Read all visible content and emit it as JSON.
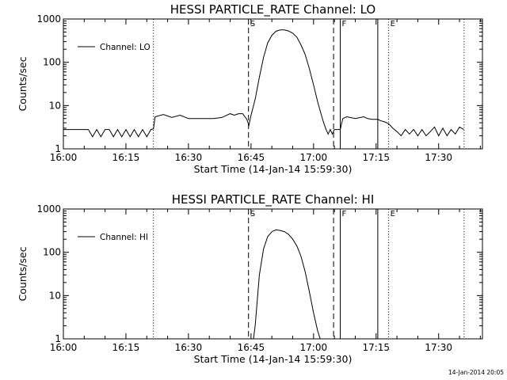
{
  "chart_data": [
    {
      "type": "line",
      "title": "HESSI PARTICLE_RATE Channel: LO",
      "xlabel": "Start Time (14-Jan-14 15:59:30)",
      "ylabel": "Counts/sec",
      "yscale": "log",
      "ylim": [
        1,
        1000
      ],
      "xlim_minutes": [
        0,
        100.5
      ],
      "xticks": [
        "16:00",
        "16:15",
        "16:30",
        "16:45",
        "17:00",
        "17:15",
        "17:30"
      ],
      "yticks": [
        "1",
        "10",
        "100",
        "1000"
      ],
      "legend": "Channel: LO",
      "legend_position": "top-left",
      "markers": [
        {
          "label": "",
          "minute": 21.6,
          "style": "dotted"
        },
        {
          "label": "S",
          "minute": 44.4,
          "style": "dashed"
        },
        {
          "label": "",
          "minute": 64.8,
          "style": "dashed"
        },
        {
          "label": "F",
          "minute": 66.4,
          "style": "solid"
        },
        {
          "label": "",
          "minute": 75.4,
          "style": "solid"
        },
        {
          "label": "E",
          "minute": 78.0,
          "style": "dotted"
        },
        {
          "label": "",
          "minute": 96.1,
          "style": "dotted"
        }
      ],
      "series": [
        {
          "name": "Channel: LO",
          "x": [
            0,
            6,
            7,
            8,
            9,
            10,
            11,
            12,
            13,
            14,
            15,
            16,
            17,
            18,
            19,
            20,
            21,
            21.6,
            22,
            24,
            26,
            28,
            30,
            32,
            34,
            36,
            38,
            40,
            41,
            42,
            43,
            44,
            44.5,
            45,
            46,
            47,
            48,
            49,
            50,
            51,
            52,
            53,
            54,
            55,
            56,
            57,
            58,
            59,
            60,
            61,
            62,
            62.5,
            63,
            63.5,
            64,
            64.5,
            65,
            66.4,
            67,
            68,
            70,
            72,
            73,
            74,
            75.4,
            76,
            77,
            78,
            79,
            80,
            81,
            82,
            83,
            84,
            85,
            86,
            87,
            88,
            89,
            90,
            91,
            92,
            93,
            94,
            95,
            95.5,
            96
          ],
          "y": [
            2.8,
            2.8,
            1.9,
            2.8,
            1.9,
            2.8,
            2.8,
            1.9,
            2.8,
            1.9,
            2.8,
            1.9,
            2.8,
            1.9,
            2.8,
            1.9,
            2.8,
            2.9,
            5.5,
            6.2,
            5.3,
            6.0,
            5.0,
            5.0,
            5.0,
            5.0,
            5.3,
            6.5,
            6.0,
            6.5,
            6.5,
            4.8,
            3.5,
            6.0,
            14,
            45,
            130,
            280,
            420,
            520,
            560,
            560,
            530,
            470,
            380,
            250,
            150,
            70,
            30,
            12,
            5.5,
            3.8,
            2.8,
            2.2,
            2.8,
            2.2,
            2.8,
            2.8,
            5.0,
            5.5,
            5.0,
            5.5,
            5.0,
            4.8,
            4.8,
            4.5,
            4.2,
            3.8,
            3.0,
            2.5,
            2.0,
            2.8,
            2.2,
            2.8,
            2.0,
            2.8,
            2.0,
            2.5,
            3.2,
            2.0,
            3.0,
            2.0,
            2.8,
            2.2,
            3.2,
            3.0,
            2.8
          ]
        }
      ]
    },
    {
      "type": "line",
      "title": "HESSI PARTICLE_RATE Channel: HI",
      "xlabel": "Start Time (14-Jan-14 15:59:30)",
      "ylabel": "Counts/sec",
      "yscale": "log",
      "ylim": [
        1,
        1000
      ],
      "xlim_minutes": [
        0,
        100.5
      ],
      "xticks": [
        "16:00",
        "16:15",
        "16:30",
        "16:45",
        "17:00",
        "17:15",
        "17:30"
      ],
      "yticks": [
        "1",
        "10",
        "100",
        "1000"
      ],
      "legend": "Channel: HI",
      "legend_position": "top-left",
      "markers": [
        {
          "label": "",
          "minute": 21.6,
          "style": "dotted"
        },
        {
          "label": "S",
          "minute": 44.4,
          "style": "dashed"
        },
        {
          "label": "",
          "minute": 64.8,
          "style": "dashed"
        },
        {
          "label": "F",
          "minute": 66.4,
          "style": "solid"
        },
        {
          "label": "",
          "minute": 75.4,
          "style": "solid"
        },
        {
          "label": "E",
          "minute": 78.0,
          "style": "dotted"
        },
        {
          "label": "",
          "minute": 96.1,
          "style": "dotted"
        }
      ],
      "series": [
        {
          "name": "Channel: HI",
          "x": [
            45.6,
            46,
            47,
            48,
            49,
            50,
            51,
            52,
            53,
            54,
            55,
            56,
            57,
            58,
            59,
            60,
            61,
            61.6
          ],
          "y": [
            1,
            2,
            30,
            120,
            230,
            300,
            330,
            320,
            300,
            260,
            200,
            140,
            80,
            35,
            12,
            4,
            1.5,
            1
          ]
        }
      ]
    }
  ],
  "timestamp": "14-Jan-2014 20:05"
}
